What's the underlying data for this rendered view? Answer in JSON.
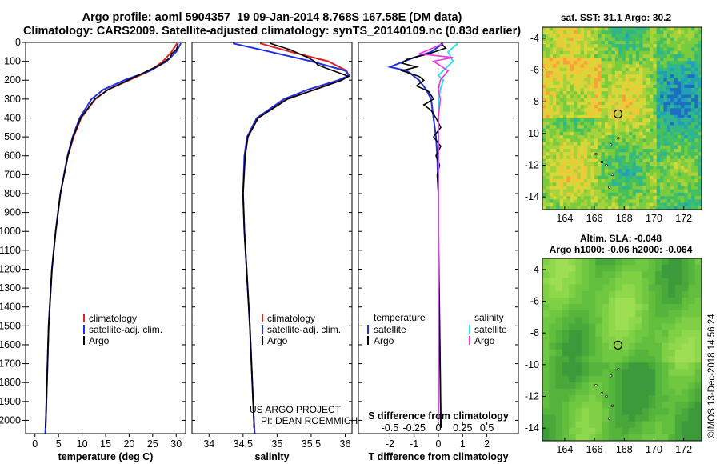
{
  "title": {
    "line1": "Argo profile: aoml 5904357_19 09-Jan-2014 8.768S 167.58E (DM data)",
    "line2": "Climatology: CARS2009. Satellite-adjusted climatology: synTS_20140109.nc (0.83d earlier)"
  },
  "colors": {
    "climatology": "#dd2020",
    "satellite": "#1f2fe0",
    "argo": "#000000",
    "sat_salinity": "#33ddee",
    "argo_salinity": "#ee33dd"
  },
  "depth_ticks": [
    0,
    100,
    200,
    300,
    400,
    500,
    600,
    700,
    800,
    900,
    1000,
    1100,
    1200,
    1300,
    1400,
    1500,
    1600,
    1700,
    1800,
    1900,
    2000
  ],
  "depth_max": 2070,
  "chart_data": [
    {
      "type": "line",
      "id": "temperature",
      "xlabel": "temperature (deg C)",
      "xlim": [
        -2,
        32
      ],
      "xticks": [
        0,
        5,
        10,
        15,
        20,
        25,
        30
      ],
      "ylim": [
        0,
        2070
      ],
      "legend": [
        "climatology",
        "satellite-adj. clim.",
        "Argo"
      ],
      "series": [
        {
          "name": "climatology",
          "depth": [
            5,
            50,
            100,
            150,
            200,
            250,
            300,
            400,
            500,
            600,
            800,
            1000,
            1200,
            1500,
            2000,
            2070
          ],
          "values": [
            30.2,
            29.0,
            27.2,
            24.5,
            20.0,
            15.5,
            12.8,
            9.8,
            8.2,
            7.0,
            5.4,
            4.4,
            3.6,
            2.9,
            2.3,
            2.2
          ]
        },
        {
          "name": "satellite-adj. clim.",
          "depth": [
            5,
            50,
            100,
            150,
            200,
            250,
            300,
            400,
            500,
            600,
            800,
            1000,
            1200,
            1500,
            2000,
            2070
          ],
          "values": [
            31.0,
            30.0,
            28.0,
            24.5,
            19.0,
            14.5,
            12.0,
            9.5,
            8.0,
            6.9,
            5.4,
            4.4,
            3.6,
            2.9,
            2.3,
            2.2
          ]
        },
        {
          "name": "Argo",
          "depth": [
            5,
            20,
            40,
            60,
            80,
            100,
            120,
            150,
            180,
            200,
            250,
            300,
            400,
            500,
            600,
            800,
            1000,
            1200,
            1500,
            2000,
            2040
          ],
          "values": [
            30.4,
            30.3,
            30.0,
            29.0,
            28.8,
            27.6,
            26.5,
            24.0,
            21.5,
            19.8,
            15.5,
            12.7,
            9.7,
            8.1,
            7.0,
            5.4,
            4.4,
            3.6,
            2.9,
            2.3,
            2.25
          ]
        }
      ]
    },
    {
      "type": "line",
      "id": "salinity",
      "xlabel": "salinity",
      "xlim": [
        33.75,
        36.1
      ],
      "xticks": [
        34,
        34.5,
        35,
        35.5,
        36
      ],
      "xticklabels": [
        "34",
        "34.5",
        "35",
        "35.5",
        "36"
      ],
      "ylim": [
        0,
        2070
      ],
      "legend": [
        "climatology",
        "satellite-adj. clim.",
        "Argo"
      ],
      "series": [
        {
          "name": "climatology",
          "depth": [
            5,
            50,
            100,
            150,
            175,
            200,
            250,
            300,
            400,
            500,
            600,
            800,
            1000,
            1500,
            2000,
            2070
          ],
          "values": [
            34.75,
            35.2,
            35.75,
            36.02,
            36.05,
            35.95,
            35.55,
            35.15,
            34.72,
            34.57,
            34.53,
            34.5,
            34.52,
            34.6,
            34.66,
            34.67
          ]
        },
        {
          "name": "satellite-adj. clim.",
          "depth": [
            5,
            50,
            100,
            150,
            175,
            200,
            250,
            300,
            400,
            500,
            600,
            800,
            1000,
            1500,
            2000,
            2070
          ],
          "values": [
            34.35,
            34.9,
            35.5,
            36.0,
            36.06,
            35.9,
            35.45,
            35.1,
            34.7,
            34.56,
            34.52,
            34.5,
            34.52,
            34.6,
            34.66,
            34.67
          ]
        },
        {
          "name": "Argo",
          "depth": [
            5,
            40,
            80,
            100,
            120,
            140,
            160,
            180,
            200,
            250,
            300,
            400,
            500,
            600,
            800,
            1000,
            1500,
            2000,
            2040
          ],
          "values": [
            34.9,
            35.2,
            35.45,
            35.55,
            35.6,
            35.75,
            35.9,
            36.05,
            35.95,
            35.55,
            35.15,
            34.72,
            34.57,
            34.53,
            34.5,
            34.52,
            34.6,
            34.66,
            34.66
          ]
        }
      ]
    },
    {
      "type": "line",
      "id": "difference",
      "xlabel": "T difference from climatology",
      "xlabel2": "S difference from climatology",
      "xlim": [
        -3.3,
        3.3
      ],
      "xticks": [
        -2,
        -1,
        0,
        1,
        2
      ],
      "xticks2": [
        -0.5,
        -0.25,
        0,
        0.25,
        0.5
      ],
      "xticklabels2": [
        "-0.5",
        "-0.25",
        "0",
        "0.25",
        "0.5"
      ],
      "ylim": [
        0,
        2070
      ],
      "legend_temperature_title": "temperature",
      "legend_salinity_title": "salinity",
      "legend_temperature": [
        "satellite",
        "Argo"
      ],
      "legend_salinity": [
        "satellite",
        "Argo"
      ],
      "series": [
        {
          "name": "T satellite",
          "depth": [
            5,
            50,
            80,
            100,
            130,
            150,
            200,
            250,
            300,
            350,
            400,
            500,
            600,
            800,
            1000,
            1500,
            2000,
            2040
          ],
          "values": [
            0.2,
            -0.3,
            -1.0,
            -1.4,
            -2.0,
            -1.3,
            -0.8,
            -0.5,
            -0.3,
            -0.25,
            -0.2,
            -0.1,
            -0.05,
            0,
            0,
            0.05,
            0.1,
            0.1
          ]
        },
        {
          "name": "T Argo",
          "depth": [
            5,
            30,
            60,
            90,
            110,
            130,
            150,
            180,
            200,
            230,
            260,
            300,
            330,
            360,
            400,
            450,
            500,
            550,
            600,
            650,
            700,
            800,
            1000,
            1200,
            1500,
            2000,
            2040
          ],
          "values": [
            0.1,
            0.3,
            -0.4,
            -1.3,
            -1.5,
            -0.9,
            -1.5,
            -0.8,
            -0.6,
            -0.9,
            -0.4,
            -0.2,
            -0.6,
            -0.3,
            -0.1,
            0.1,
            -0.2,
            0.1,
            -0.1,
            0.05,
            -0.05,
            0,
            0,
            0,
            0.05,
            0.1,
            0.1
          ]
        },
        {
          "name": "S satellite",
          "depth": [
            5,
            50,
            100,
            150,
            175,
            200,
            250,
            300,
            400,
            500,
            600,
            800,
            1000,
            1500,
            2000
          ],
          "values": [
            0.2,
            0.1,
            0.15,
            0.05,
            0,
            0.05,
            0.02,
            0,
            0,
            0,
            0,
            0,
            0,
            0,
            0
          ]
        },
        {
          "name": "S Argo",
          "depth": [
            5,
            40,
            60,
            80,
            100,
            150,
            200,
            250,
            300,
            400,
            500,
            600,
            800,
            1000,
            1500,
            2000
          ],
          "values": [
            0.05,
            -0.1,
            -0.2,
            0.15,
            -0.05,
            0.1,
            0.02,
            0,
            0.02,
            0,
            0,
            0,
            0,
            0,
            0,
            0
          ]
        }
      ]
    },
    {
      "type": "heatmap",
      "id": "sst_map",
      "title": "sat. SST: 31.1 Argo: 30.2",
      "xlim": [
        162.5,
        173.2
      ],
      "ylim": [
        -14.8,
        -3.3
      ],
      "xticks": [
        164,
        166,
        168,
        170,
        172
      ],
      "yticks": [
        -4,
        -6,
        -8,
        -10,
        -12,
        -14
      ],
      "marker": [
        167.58,
        -8.768
      ]
    },
    {
      "type": "heatmap",
      "id": "sla_map",
      "title": "Altim. SLA: -0.048",
      "subtitle": "Argo h1000: -0.06 h2000: -0.064",
      "xlim": [
        162.5,
        173.2
      ],
      "ylim": [
        -14.8,
        -3.3
      ],
      "xticks": [
        164,
        166,
        168,
        170,
        172
      ],
      "yticks": [
        -4,
        -6,
        -8,
        -10,
        -12,
        -14
      ],
      "marker": [
        167.58,
        -8.768
      ]
    }
  ],
  "annotations": {
    "project_line1": "US ARGO PROJECT",
    "project_line2": "PI: DEAN ROEMMICH",
    "stamp": "©IMOS 13-Dec-2018 14:56:24"
  }
}
